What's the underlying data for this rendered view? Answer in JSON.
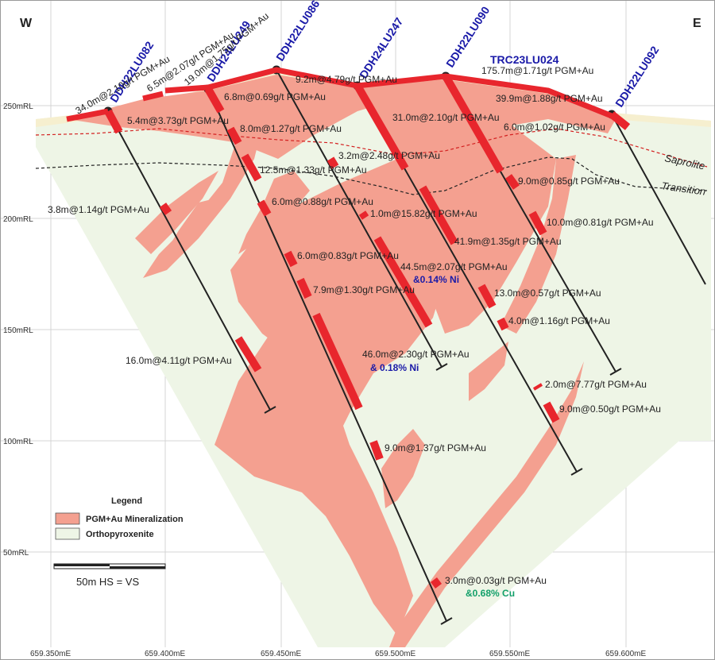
{
  "compass": {
    "west": "W",
    "east": "E"
  },
  "rl_labels": [
    "250mRL",
    "200mRL",
    "150mRL",
    "100mRL",
    "50mRL"
  ],
  "easting_labels": [
    "659.350mE",
    "659.400mE",
    "659.450mE",
    "659.500mE",
    "659.550mE",
    "659.600mE"
  ],
  "zones": {
    "saprolite": "Saprolite",
    "transition": "Transition"
  },
  "holes": [
    "DDH22LU082",
    "DDH24LU249",
    "DDH22LU086",
    "DDH24LU247",
    "DDH22LU090",
    "TRC23LU024",
    "DDH22LU092"
  ],
  "intercepts": [
    "34.0m@2.10g/t PGM+Au",
    "6.5m@2.07g/t PGM+Au",
    "19.0m@1.75g/t PGM+Au",
    "6.8m@0.69g/t PGM+Au",
    "5.4m@3.73g/t PGM+Au",
    "9.2m@4.79g/t PGM+Au",
    "175.7m@1.71g/t PGM+Au",
    "39.9m@1.88g/t PGM+Au",
    "31.0m@2.10g/t PGM+Au",
    "6.0m@1.02g/t PGM+Au",
    "8.0m@1.27g/t PGM+Au",
    "3.2m@2.48g/t PGM+Au",
    "12.5m@1.33g/t PGM+Au",
    "9.0m@0.85g/t PGM+Au",
    "3.8m@1.14g/t PGM+Au",
    "6.0m@0.88g/t PGM+Au",
    "1.0m@15.82g/t PGM+Au",
    "10.0m@0.81g/t PGM+Au",
    "41.9m@1.35g/t PGM+Au",
    "6.0m@0.83g/t PGM+Au",
    "44.5m@2.07g/t PGM+Au",
    "7.9m@1.30g/t PGM+Au",
    "13.0m@0.57g/t PGM+Au",
    "4.0m@1.16g/t PGM+Au",
    "16.0m@4.11g/t PGM+Au",
    "46.0m@2.30g/t PGM+Au",
    "2.0m@7.77g/t PGM+Au",
    "9.0m@0.50g/t PGM+Au",
    "9.0m@1.37g/t PGM+Au",
    "3.0m@0.03g/t PGM+Au"
  ],
  "ni_notes": [
    "&0.14% Ni",
    "& 0.18% Ni"
  ],
  "cu_note": "&0.68% Cu",
  "legend": {
    "title": "Legend",
    "items": [
      "PGM+Au Mineralization",
      "Orthopyroxenite"
    ]
  },
  "scale": {
    "label": "50m  HS = VS"
  },
  "colors": {
    "mineralization": "#f4a090",
    "orthopyroxenite": "#eef5e6",
    "intercept": "#e8262d",
    "hole_label": "#1a1aa8",
    "ni_note": "#1a1aa8",
    "cu_note": "#13a06a"
  }
}
